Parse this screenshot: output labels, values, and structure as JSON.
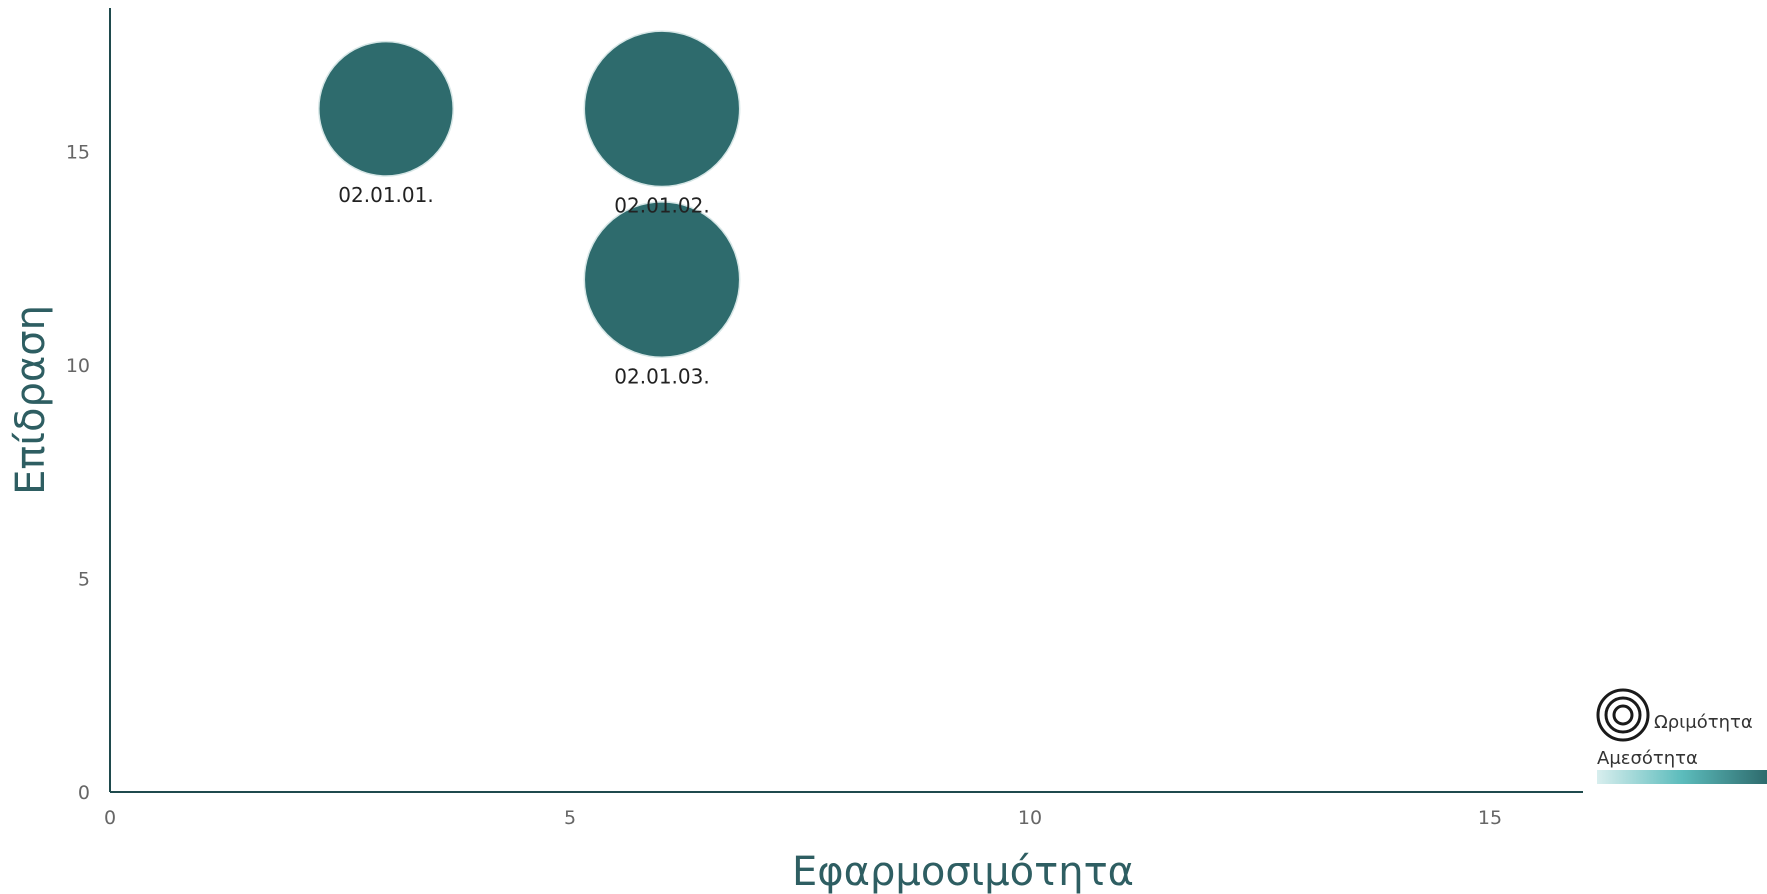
{
  "chart_data": {
    "type": "scatter",
    "xlabel": "Εφαρμοσιμότητα",
    "ylabel": "Επίδραση",
    "xlim": [
      0,
      16
    ],
    "ylim": [
      0,
      18
    ],
    "x_ticks": [
      "0",
      "5",
      "10",
      "15"
    ],
    "y_ticks": [
      "0",
      "5",
      "10",
      "15"
    ],
    "grid": false,
    "bubble_color": "#2e6b6d",
    "points": [
      {
        "label": "02.01.01.",
        "x": 3,
        "y": 16,
        "maturity": 1.6
      },
      {
        "label": "02.01.02.",
        "x": 6,
        "y": 16,
        "maturity": 1.85
      },
      {
        "label": "02.01.03.",
        "x": 6,
        "y": 12,
        "maturity": 1.85
      }
    ],
    "legend": {
      "placement": "bottom-right",
      "size_label": "Ωριμότητα",
      "color_label": "Αμεσότητα",
      "gradient": [
        "#d8eeee",
        "#5cbcbc",
        "#2e6b6d"
      ]
    }
  }
}
